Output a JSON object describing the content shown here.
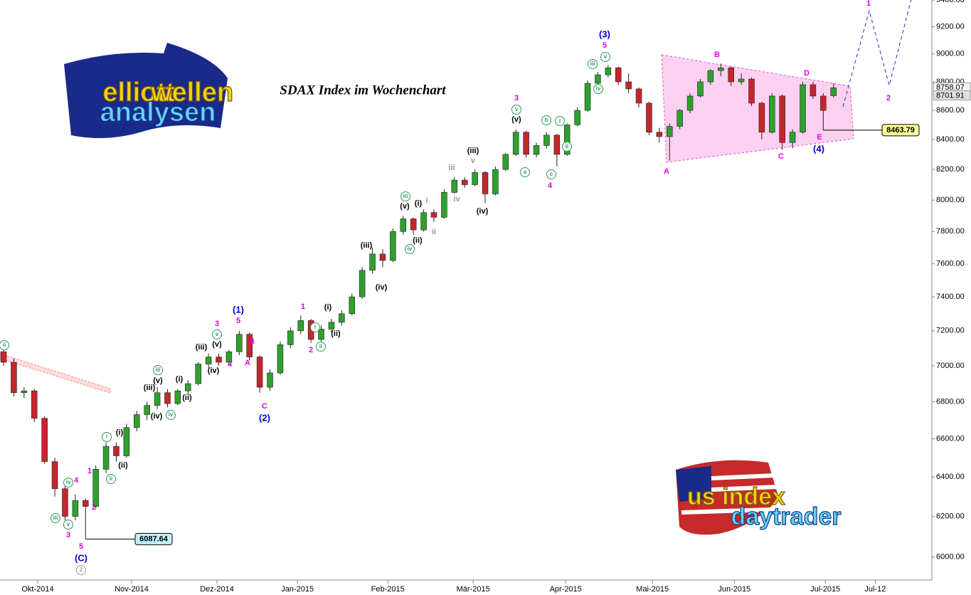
{
  "chart_data": {
    "type": "candlestick",
    "title": "SDAX Index im Wochenchart",
    "log_scale": true,
    "up_color": "#2ea02e",
    "down_color": "#c4262c",
    "ylim": [
      5900,
      9400
    ],
    "yticks": [
      {
        "value": 6000,
        "label": "6000.00"
      },
      {
        "value": 6200,
        "label": "6200.00"
      },
      {
        "value": 6400,
        "label": "6400.00"
      },
      {
        "value": 6600,
        "label": "6600.00"
      },
      {
        "value": 6800,
        "label": "6800.00"
      },
      {
        "value": 7000,
        "label": "7000.00"
      },
      {
        "value": 7200,
        "label": "7200.00"
      },
      {
        "value": 7400,
        "label": "7400.00"
      },
      {
        "value": 7600,
        "label": "7600.00"
      },
      {
        "value": 7800,
        "label": "7800.00"
      },
      {
        "value": 8000,
        "label": "8000.00"
      },
      {
        "value": 8200,
        "label": "8200.00"
      },
      {
        "value": 8400,
        "label": "8400.00"
      },
      {
        "value": 8600,
        "label": "8600.00"
      },
      {
        "value": 8800,
        "label": "8800.00"
      },
      {
        "value": 9000,
        "label": "9000.00"
      },
      {
        "value": 9200,
        "label": "9200.00"
      },
      {
        "value": 9400,
        "label": "9400.00"
      }
    ],
    "xlim": [
      -0.35,
      90.6
    ],
    "xticks": [
      {
        "value": 3.33,
        "label": "Okt-2014"
      },
      {
        "value": 12.5,
        "label": "Nov-2014"
      },
      {
        "value": 20.83,
        "label": "Dez-2014"
      },
      {
        "value": 28.68,
        "label": "Jan-2015"
      },
      {
        "value": 37.5,
        "label": "Feb-2015"
      },
      {
        "value": 45.83,
        "label": "Mär-2015"
      },
      {
        "value": 54.86,
        "label": "Apr-2015"
      },
      {
        "value": 63.33,
        "label": "Mai-2015"
      },
      {
        "value": 71.32,
        "label": "Jun-2015"
      },
      {
        "value": 80.2,
        "label": "Jul-2015"
      },
      {
        "value": 85.07,
        "label": "Jul-12"
      }
    ],
    "candles": [
      [
        7080,
        7090,
        7000,
        7020
      ],
      [
        7020,
        7040,
        6830,
        6850
      ],
      [
        6850,
        6880,
        6820,
        6860
      ],
      [
        6860,
        6870,
        6690,
        6710
      ],
      [
        6710,
        6720,
        6470,
        6480
      ],
      [
        6480,
        6500,
        6300,
        6340
      ],
      [
        6340,
        6360,
        6180,
        6200
      ],
      [
        6200,
        6310,
        6180,
        6280
      ],
      [
        6280,
        6290,
        6087.64,
        6250
      ],
      [
        6250,
        6460,
        6240,
        6440
      ],
      [
        6440,
        6580,
        6420,
        6560
      ],
      [
        6560,
        6580,
        6480,
        6510
      ],
      [
        6510,
        6680,
        6500,
        6660
      ],
      [
        6660,
        6750,
        6640,
        6730
      ],
      [
        6730,
        6800,
        6700,
        6780
      ],
      [
        6780,
        6880,
        6760,
        6850
      ],
      [
        6850,
        6870,
        6770,
        6790
      ],
      [
        6790,
        6870,
        6780,
        6860
      ],
      [
        6860,
        6920,
        6840,
        6900
      ],
      [
        6900,
        7020,
        6890,
        7010
      ],
      [
        7010,
        7070,
        6990,
        7050
      ],
      [
        7050,
        7070,
        7000,
        7020
      ],
      [
        7020,
        7090,
        7000,
        7080
      ],
      [
        7080,
        7200,
        7060,
        7180
      ],
      [
        7180,
        7190,
        7030,
        7050
      ],
      [
        7050,
        7060,
        6850,
        6880
      ],
      [
        6880,
        6980,
        6860,
        6960
      ],
      [
        6960,
        7140,
        6950,
        7120
      ],
      [
        7120,
        7220,
        7100,
        7200
      ],
      [
        7200,
        7290,
        7180,
        7260
      ],
      [
        7260,
        7270,
        7130,
        7150
      ],
      [
        7150,
        7230,
        7130,
        7210
      ],
      [
        7210,
        7270,
        7190,
        7250
      ],
      [
        7250,
        7320,
        7230,
        7300
      ],
      [
        7300,
        7420,
        7290,
        7400
      ],
      [
        7400,
        7580,
        7390,
        7560
      ],
      [
        7560,
        7700,
        7540,
        7660
      ],
      [
        7660,
        7690,
        7580,
        7620
      ],
      [
        7620,
        7820,
        7610,
        7800
      ],
      [
        7800,
        7900,
        7780,
        7880
      ],
      [
        7880,
        7890,
        7780,
        7810
      ],
      [
        7810,
        7940,
        7800,
        7920
      ],
      [
        7920,
        7940,
        7860,
        7890
      ],
      [
        7890,
        8070,
        7880,
        8050
      ],
      [
        8050,
        8150,
        8040,
        8130
      ],
      [
        8130,
        8150,
        8080,
        8100
      ],
      [
        8100,
        8200,
        8090,
        8180
      ],
      [
        8180,
        8190,
        7980,
        8040
      ],
      [
        8040,
        8220,
        8030,
        8200
      ],
      [
        8200,
        8310,
        8190,
        8300
      ],
      [
        8300,
        8470,
        8290,
        8450
      ],
      [
        8450,
        8460,
        8280,
        8300
      ],
      [
        8300,
        8380,
        8280,
        8360
      ],
      [
        8360,
        8450,
        8340,
        8430
      ],
      [
        8430,
        8440,
        8220,
        8300
      ],
      [
        8300,
        8510,
        8290,
        8500
      ],
      [
        8500,
        8620,
        8490,
        8600
      ],
      [
        8600,
        8810,
        8590,
        8790
      ],
      [
        8790,
        8870,
        8770,
        8850
      ],
      [
        8850,
        8920,
        8830,
        8900
      ],
      [
        8900,
        8910,
        8780,
        8800
      ],
      [
        8800,
        8860,
        8720,
        8750
      ],
      [
        8750,
        8760,
        8620,
        8650
      ],
      [
        8650,
        8660,
        8430,
        8450
      ],
      [
        8450,
        8480,
        8380,
        8420
      ],
      [
        8420,
        8510,
        8260,
        8490
      ],
      [
        8490,
        8610,
        8470,
        8600
      ],
      [
        8600,
        8720,
        8580,
        8700
      ],
      [
        8700,
        8820,
        8690,
        8800
      ],
      [
        8800,
        8890,
        8780,
        8880
      ],
      [
        8880,
        8930,
        8840,
        8900
      ],
      [
        8900,
        8910,
        8770,
        8800
      ],
      [
        8800,
        8860,
        8780,
        8820
      ],
      [
        8820,
        8830,
        8630,
        8650
      ],
      [
        8650,
        8660,
        8400,
        8450
      ],
      [
        8450,
        8720,
        8440,
        8700
      ],
      [
        8700,
        8710,
        8330,
        8380
      ],
      [
        8380,
        8470,
        8340,
        8450
      ],
      [
        8450,
        8800,
        8440,
        8780
      ],
      [
        8780,
        8800,
        8680,
        8700
      ],
      [
        8700,
        8720,
        8463.79,
        8600
      ],
      [
        8701.91,
        8790,
        8690,
        8758.07
      ]
    ],
    "wave_labels": [
      {
        "text": "ii",
        "color": "#2e9a5e",
        "circled": true
      },
      {
        "text": "iii",
        "color": "#2e9a5e",
        "circled": true
      },
      {
        "text": "v",
        "color": "#2e9a5e",
        "circled": true
      },
      {
        "text": "3",
        "color": "#e000e0"
      },
      {
        "text": "iv",
        "color": "#2e9a5e",
        "circled": true
      },
      {
        "text": "4",
        "color": "#e000e0"
      },
      {
        "text": "1",
        "color": "#e000e0"
      },
      {
        "text": "2",
        "color": "#e000e0"
      },
      {
        "text": "5",
        "color": "#e000e0"
      },
      {
        "text": "(C)",
        "color": "#0000d0"
      },
      {
        "text": "2",
        "color": "#999999",
        "circled": true
      },
      {
        "text": "i",
        "color": "#2e9a5e",
        "circled": true
      },
      {
        "text": "ii",
        "color": "#2e9a5e",
        "circled": true
      },
      {
        "text": "(i)",
        "color": "#000000"
      },
      {
        "text": "(ii)",
        "color": "#000000"
      },
      {
        "text": "iii",
        "color": "#2e9a5e",
        "circled": true
      },
      {
        "text": "(v)",
        "color": "#000000"
      },
      {
        "text": "(iii)",
        "color": "#000000"
      },
      {
        "text": "(iv)",
        "color": "#000000"
      },
      {
        "text": "iv",
        "color": "#2e9a5e",
        "circled": true
      },
      {
        "text": "(i)",
        "color": "#000000"
      },
      {
        "text": "(ii)",
        "color": "#000000"
      },
      {
        "text": "(iii)",
        "color": "#000000"
      },
      {
        "text": "(v)",
        "color": "#000000"
      },
      {
        "text": "v",
        "color": "#2e9a5e",
        "circled": true
      },
      {
        "text": "3",
        "color": "#e000e0"
      },
      {
        "text": "(iv)",
        "color": "#000000"
      },
      {
        "text": "4",
        "color": "#e000e0"
      },
      {
        "text": "(1)",
        "color": "#0000d0"
      },
      {
        "text": "5",
        "color": "#e000e0"
      },
      {
        "text": "B",
        "color": "#e000e0"
      },
      {
        "text": "A",
        "color": "#e000e0"
      },
      {
        "text": "C",
        "color": "#e000e0"
      },
      {
        "text": "(2)",
        "color": "#0000d0"
      },
      {
        "text": "1",
        "color": "#e000e0"
      },
      {
        "text": "2",
        "color": "#e000e0"
      },
      {
        "text": "(i)",
        "color": "#000000"
      },
      {
        "text": "i",
        "color": "#2e9a5e",
        "circled": true
      },
      {
        "text": "ii",
        "color": "#2e9a5e",
        "circled": true
      },
      {
        "text": "(ii)",
        "color": "#000000"
      },
      {
        "text": "(iii)",
        "color": "#000000"
      },
      {
        "text": "(iv)",
        "color": "#000000"
      },
      {
        "text": "iii",
        "color": "#2e9a5e",
        "circled": true
      },
      {
        "text": "(v)",
        "color": "#000000"
      },
      {
        "text": "i",
        "color": "#999999"
      },
      {
        "text": "(i)",
        "color": "#000000"
      },
      {
        "text": "(ii)",
        "color": "#000000"
      },
      {
        "text": "iv",
        "color": "#2e9a5e",
        "circled": true
      },
      {
        "text": "ii",
        "color": "#999999"
      },
      {
        "text": "iii",
        "color": "#999999"
      },
      {
        "text": "iv",
        "color": "#999999"
      },
      {
        "text": "(iii)",
        "color": "#000000"
      },
      {
        "text": "v",
        "color": "#999999"
      },
      {
        "text": "(iv)",
        "color": "#000000"
      },
      {
        "text": "3",
        "color": "#e000e0"
      },
      {
        "text": "v",
        "color": "#2e9a5e",
        "circled": true
      },
      {
        "text": "(v)",
        "color": "#000000"
      },
      {
        "text": "a",
        "color": "#2e9a5e",
        "circled": true
      },
      {
        "text": "b",
        "color": "#2e9a5e",
        "circled": true
      },
      {
        "text": "i",
        "color": "#2e9a5e",
        "circled": true
      },
      {
        "text": "ii",
        "color": "#2e9a5e",
        "circled": true
      },
      {
        "text": "c",
        "color": "#2e9a5e",
        "circled": true
      },
      {
        "text": "4",
        "color": "#e000e0"
      },
      {
        "text": "(3)",
        "color": "#0000d0"
      },
      {
        "text": "5",
        "color": "#e000e0"
      },
      {
        "text": "v",
        "color": "#2e9a5e",
        "circled": true
      },
      {
        "text": "iii",
        "color": "#2e9a5e",
        "circled": true
      },
      {
        "text": "iv",
        "color": "#2e9a5e",
        "circled": true
      },
      {
        "text": "A",
        "color": "#e000e0"
      },
      {
        "text": "B",
        "color": "#e000e0"
      },
      {
        "text": "C",
        "color": "#e000e0"
      },
      {
        "text": "D",
        "color": "#e000e0"
      },
      {
        "text": "E",
        "color": "#e000e0"
      },
      {
        "text": "(4)",
        "color": "#0000d0"
      },
      {
        "text": "1",
        "color": "#e000e0"
      },
      {
        "text": "2",
        "color": "#e000e0"
      }
    ],
    "logo_top": [
      "elliott",
      "wellen",
      "analysen"
    ],
    "logo_bottom": [
      "us index",
      "daytrader"
    ]
  }
}
